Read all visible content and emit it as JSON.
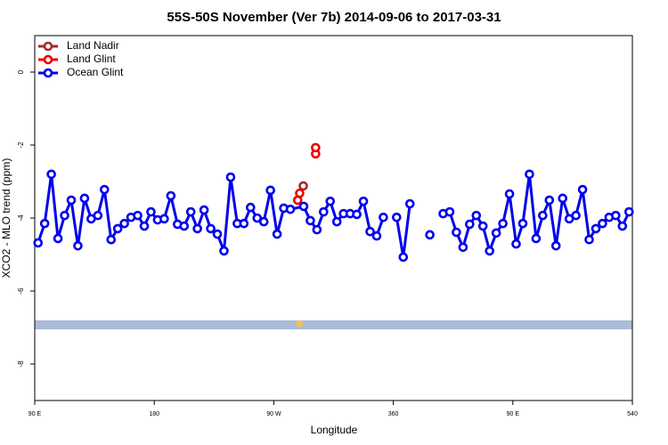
{
  "chart_data": {
    "type": "line",
    "title": "55S-50S November (Ver 7b)   2014-09-06 to 2017-03-31",
    "x_label": "Longitude",
    "y_label": "XCO2 - MLO trend (ppm)",
    "xlim": [
      90,
      540
    ],
    "ylim": [
      -9,
      1
    ],
    "xticks": [
      {
        "value": 90,
        "label": "90 E"
      },
      180,
      {
        "value": 270,
        "label": "90 W"
      },
      360,
      {
        "value": 450,
        "label": "90 E"
      },
      540
    ],
    "yticks": [
      0,
      -2,
      -4,
      -6,
      -8
    ],
    "legend": "top-left",
    "series": [
      {
        "name": "Land Nadir",
        "color": "#a52a2a",
        "x": [
          292.2
        ],
        "values": [
          -3.12
        ]
      },
      {
        "name": "Land Glint",
        "color": "#ee0000",
        "x": [
          288,
          289.5,
          295,
          301.5,
          301.5
        ],
        "values": [
          -3.51,
          -3.32,
          null,
          -2.24,
          -2.07
        ]
      },
      {
        "name": "Ocean Glint",
        "color": "#0000ee",
        "x": [
          92.5,
          97.5,
          102.5,
          107.5,
          112.5,
          117.5,
          122.5,
          127.5,
          132.5,
          137.5,
          142.5,
          147.5,
          152.5,
          157.5,
          162.5,
          167.5,
          172.5,
          177.5,
          182.5,
          187.5,
          192.5,
          197.5,
          202.5,
          207.5,
          212.5,
          217.5,
          222.5,
          227.5,
          232.5,
          237.5,
          242.5,
          247.5,
          252.5,
          257.5,
          262.5,
          267.5,
          272.5,
          277.5,
          282.5,
          292.5,
          297.5,
          302.5,
          307.5,
          312.5,
          317.5,
          322.5,
          327.5,
          332.5,
          337.5,
          342.5,
          347.5,
          352.5,
          357.5,
          362.5,
          367.5,
          372.5,
          377.5,
          382.5,
          387.5,
          392.5,
          397.5,
          402.5,
          407.5,
          412.5,
          417.5,
          422.5,
          427.5,
          432.5,
          437.5,
          442.5,
          447.5,
          452.5,
          457.5,
          462.5,
          467.5,
          472.5,
          477.5,
          482.5,
          487.5,
          492.5,
          497.5,
          502.5,
          507.5,
          512.5,
          517.5,
          522.5,
          527.5,
          532.5,
          537.5
        ],
        "values": [
          -4.68,
          -4.15,
          -2.8,
          -4.56,
          -3.93,
          -3.51,
          -4.76,
          -3.46,
          -4.02,
          -3.93,
          -3.22,
          -4.59,
          -4.29,
          -4.15,
          -3.98,
          -3.93,
          -4.22,
          -3.83,
          -4.05,
          -4.02,
          -3.39,
          -4.17,
          -4.22,
          -3.83,
          -4.29,
          -3.78,
          -4.29,
          -4.44,
          -4.9,
          -2.88,
          -4.15,
          -4.15,
          -3.71,
          -4.0,
          -4.1,
          -3.24,
          -4.44,
          -3.73,
          -3.76,
          -3.68,
          -4.07,
          -4.32,
          -3.83,
          -3.54,
          -4.1,
          -3.88,
          -3.88,
          -3.9,
          -3.54,
          -4.37,
          -4.49,
          -3.98,
          null,
          -3.98,
          -5.07,
          -3.61,
          null,
          null,
          -4.46,
          null,
          -3.88,
          -3.83,
          -4.39,
          -4.8,
          -4.17,
          -3.93,
          -4.22,
          -4.9,
          -4.41,
          -4.15,
          -3.34,
          -4.71,
          -4.15,
          -2.8,
          -4.56,
          -3.93,
          -3.51,
          -4.76,
          -3.46,
          -4.02,
          -3.93,
          -3.22,
          -4.59,
          -4.29,
          -4.15,
          -3.98,
          -3.93,
          -4.22,
          -3.83
        ]
      }
    ]
  }
}
